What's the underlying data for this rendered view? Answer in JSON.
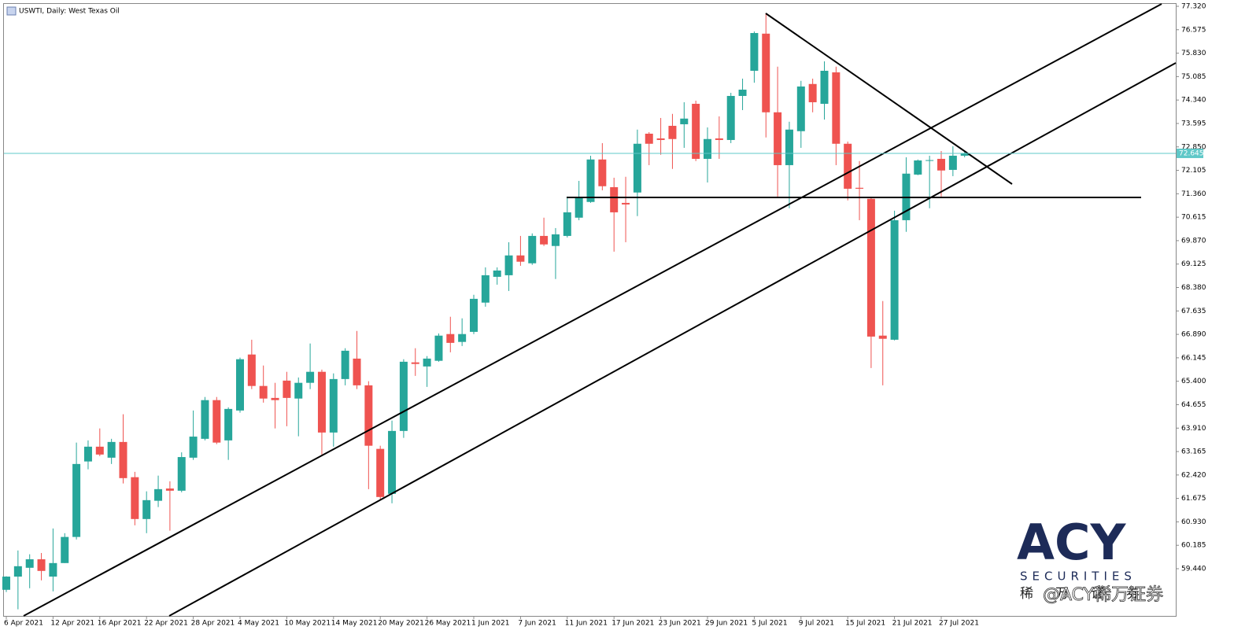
{
  "chart_data": {
    "type": "candlestick",
    "title": "USWTI, Daily:  West Texas Oil",
    "categories": [
      "6 Apr 2021",
      null,
      null,
      null,
      "12 Apr 2021",
      null,
      null,
      null,
      "16 Apr 2021",
      null,
      null,
      null,
      "22 Apr 2021",
      null,
      null,
      null,
      "28 Apr 2021",
      null,
      null,
      null,
      "4 May 2021",
      null,
      null,
      null,
      "10 May 2021",
      null,
      null,
      null,
      "14 May 2021",
      null,
      null,
      null,
      "20 May 2021",
      null,
      null,
      null,
      "26 May 2021",
      null,
      null,
      null,
      "1 Jun 2021",
      null,
      null,
      null,
      "7 Jun 2021",
      null,
      null,
      null,
      "11 Jun 2021",
      null,
      null,
      null,
      "17 Jun 2021",
      null,
      null,
      null,
      "23 Jun 2021",
      null,
      null,
      null,
      "29 Jun 2021",
      null,
      null,
      null,
      "5 Jul 2021",
      null,
      null,
      null,
      "9 Jul 2021",
      null,
      null,
      null,
      "15 Jul 2021",
      null,
      null,
      null,
      "21 Jul 2021",
      null,
      null,
      null,
      "27 Jul 2021",
      null,
      null
    ],
    "open": [
      58.77,
      59.19,
      59.47,
      59.74,
      59.19,
      59.62,
      60.45,
      62.85,
      63.32,
      62.97,
      63.47,
      62.35,
      61.02,
      61.6,
      61.99,
      61.92,
      62.97,
      63.57,
      64.8,
      63.52,
      64.47,
      66.25,
      65.25,
      64.87,
      65.42,
      64.85,
      65.35,
      65.7,
      63.77,
      65.47,
      66.12,
      65.27,
      63.25,
      61.82,
      63.82,
      66.0,
      65.87,
      66.05,
      66.9,
      66.65,
      66.97,
      67.9,
      68.72,
      68.77,
      69.4,
      69.15,
      70.02,
      69.7,
      70.02,
      70.6,
      71.1,
      72.45,
      71.57,
      71.07,
      71.4,
      73.27,
      73.12,
      73.52,
      73.57,
      74.22,
      72.47,
      73.12,
      73.07,
      74.47,
      75.27,
      76.45,
      73.95,
      72.27,
      73.35,
      74.85,
      74.22,
      75.22,
      72.95,
      71.55,
      71.2,
      66.85,
      66.72,
      70.52,
      71.97,
      72.41,
      72.47,
      72.12,
      72.57
    ],
    "high": [
      59.2,
      60.02,
      59.9,
      59.94,
      60.72,
      60.57,
      63.45,
      63.52,
      63.9,
      63.57,
      64.35,
      62.52,
      61.9,
      62.4,
      62.22,
      63.14,
      64.47,
      64.9,
      64.9,
      64.57,
      66.15,
      66.72,
      65.9,
      65.35,
      65.7,
      65.52,
      66.6,
      65.77,
      65.65,
      66.45,
      67.0,
      65.4,
      63.35,
      64.15,
      66.1,
      66.45,
      66.2,
      66.92,
      67.45,
      67.4,
      68.15,
      69.02,
      69.02,
      69.82,
      70.02,
      70.1,
      70.6,
      70.27,
      71.27,
      71.77,
      72.57,
      72.97,
      71.87,
      71.9,
      73.4,
      73.32,
      73.77,
      73.9,
      74.27,
      74.32,
      73.47,
      73.82,
      74.57,
      75.02,
      76.52,
      77.1,
      75.4,
      73.65,
      74.95,
      75.02,
      75.57,
      75.4,
      73.02,
      72.4,
      71.22,
      67.95,
      70.82,
      72.52,
      72.45,
      72.57,
      72.72,
      72.87,
      72.7
    ],
    "low": [
      58.7,
      58.15,
      58.82,
      59.07,
      58.72,
      59.62,
      60.37,
      62.6,
      63.02,
      62.77,
      62.15,
      60.82,
      60.57,
      61.4,
      60.65,
      61.87,
      62.9,
      63.52,
      63.4,
      62.9,
      64.4,
      65.15,
      64.72,
      63.9,
      63.97,
      63.65,
      65.15,
      63.07,
      63.32,
      65.27,
      65.15,
      61.97,
      61.65,
      61.52,
      63.6,
      65.57,
      65.22,
      66.02,
      66.32,
      66.52,
      66.9,
      67.77,
      68.47,
      68.27,
      69.07,
      69.1,
      69.7,
      68.65,
      69.97,
      70.52,
      71.07,
      71.47,
      69.52,
      69.82,
      70.65,
      72.27,
      72.6,
      72.15,
      72.82,
      72.4,
      71.72,
      72.47,
      72.97,
      74.02,
      74.89,
      73.15,
      71.27,
      70.9,
      72.82,
      73.95,
      73.72,
      72.27,
      71.15,
      70.52,
      65.82,
      65.27,
      66.7,
      70.15,
      71.95,
      70.9,
      71.27,
      71.92,
      72.52
    ],
    "close": [
      59.19,
      59.52,
      59.74,
      59.37,
      59.62,
      60.45,
      62.77,
      63.32,
      63.07,
      63.47,
      62.32,
      61.02,
      61.62,
      61.97,
      61.92,
      62.99,
      63.64,
      64.8,
      63.45,
      64.52,
      66.1,
      65.25,
      64.85,
      64.8,
      64.87,
      65.35,
      65.7,
      63.77,
      65.47,
      66.37,
      65.27,
      63.35,
      61.72,
      63.82,
      66.02,
      65.95,
      66.12,
      66.85,
      66.62,
      66.9,
      68.02,
      68.77,
      68.92,
      69.4,
      69.2,
      70.02,
      69.75,
      70.07,
      70.77,
      71.22,
      72.45,
      71.6,
      70.77,
      71.02,
      72.95,
      72.95,
      73.07,
      73.1,
      73.75,
      72.47,
      73.1,
      73.07,
      74.47,
      74.67,
      76.47,
      73.95,
      72.27,
      73.4,
      74.77,
      74.27,
      75.27,
      72.95,
      71.52,
      71.52,
      66.82,
      66.75,
      70.52,
      72.0,
      72.42,
      72.43,
      72.1,
      72.57,
      72.645
    ],
    "up_color": "#26a69a",
    "down_color": "#ef5350",
    "current_price": 72.645,
    "current_price_color": "#5fc8c8",
    "ylim": [
      57.94,
      77.395
    ],
    "yticks": [
      {
        "value": 77.32,
        "label": "77.320"
      },
      76.575,
      {
        "value": 75.83,
        "label": "75.830"
      },
      75.085,
      {
        "value": 74.34,
        "label": "74.340"
      },
      73.595,
      {
        "value": 72.85,
        "label": "72.850"
      },
      72.105,
      {
        "value": 71.36,
        "label": "71.360"
      },
      70.615,
      {
        "value": 69.87,
        "label": "69.870"
      },
      69.125,
      {
        "value": 68.38,
        "label": "68.380"
      },
      67.635,
      {
        "value": 66.89,
        "label": "66.890"
      },
      66.145,
      {
        "value": 65.4,
        "label": "65.400"
      },
      64.655,
      {
        "value": 63.91,
        "label": "63.910"
      },
      63.165,
      {
        "value": 62.42,
        "label": "62.420"
      },
      61.675,
      {
        "value": 60.93,
        "label": "60.930"
      },
      60.185,
      {
        "value": 59.44,
        "label": "59.440"
      }
    ]
  },
  "watermark": {
    "logo": "ACY",
    "logo_sub": "SECURITIES",
    "cn": "稀万证券",
    "weibo": "@ACY稀万证券"
  }
}
